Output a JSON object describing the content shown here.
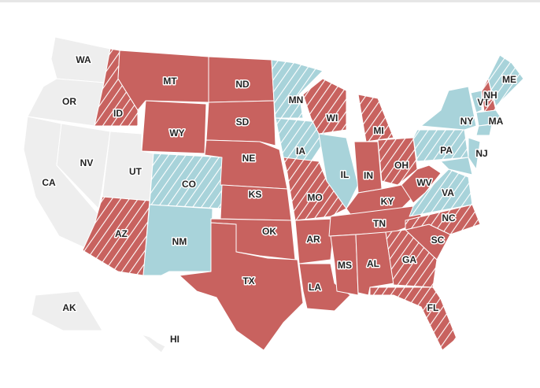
{
  "states": [
    {
      "label": "WA",
      "fill": "#eeeeee",
      "hatched": false
    },
    {
      "label": "OR",
      "fill": "#eeeeee",
      "hatched": false
    },
    {
      "label": "CA",
      "fill": "#eeeeee",
      "hatched": false
    },
    {
      "label": "NV",
      "fill": "#eeeeee",
      "hatched": false
    },
    {
      "label": "ID",
      "fill": "#c8625f",
      "hatched": true
    },
    {
      "label": "MT",
      "fill": "#c8625f",
      "hatched": false
    },
    {
      "label": "WY",
      "fill": "#c8625f",
      "hatched": false
    },
    {
      "label": "UT",
      "fill": "#eeeeee",
      "hatched": false
    },
    {
      "label": "CO",
      "fill": "#a8d3da",
      "hatched": true
    },
    {
      "label": "AZ",
      "fill": "#c8625f",
      "hatched": true
    },
    {
      "label": "NM",
      "fill": "#a8d3da",
      "hatched": false
    },
    {
      "label": "ND",
      "fill": "#c8625f",
      "hatched": false
    },
    {
      "label": "SD",
      "fill": "#c8625f",
      "hatched": false
    },
    {
      "label": "NE",
      "fill": "#c8625f",
      "hatched": false
    },
    {
      "label": "KS",
      "fill": "#c8625f",
      "hatched": false
    },
    {
      "label": "OK",
      "fill": "#c8625f",
      "hatched": false
    },
    {
      "label": "TX",
      "fill": "#c8625f",
      "hatched": false
    },
    {
      "label": "MN",
      "fill": "#a8d3da",
      "hatched": true
    },
    {
      "label": "IA",
      "fill": "#a8d3da",
      "hatched": true
    },
    {
      "label": "MO",
      "fill": "#c8625f",
      "hatched": true
    },
    {
      "label": "AR",
      "fill": "#c8625f",
      "hatched": false
    },
    {
      "label": "LA",
      "fill": "#c8625f",
      "hatched": false
    },
    {
      "label": "WI",
      "fill": "#c8625f",
      "hatched": true
    },
    {
      "label": "IL",
      "fill": "#a8d3da",
      "hatched": false
    },
    {
      "label": "MI",
      "fill": "#c8625f",
      "hatched": true
    },
    {
      "label": "IN",
      "fill": "#c8625f",
      "hatched": false
    },
    {
      "label": "OH",
      "fill": "#c8625f",
      "hatched": true
    },
    {
      "label": "KY",
      "fill": "#c8625f",
      "hatched": false
    },
    {
      "label": "TN",
      "fill": "#c8625f",
      "hatched": false
    },
    {
      "label": "MS",
      "fill": "#c8625f",
      "hatched": false
    },
    {
      "label": "AL",
      "fill": "#c8625f",
      "hatched": false
    },
    {
      "label": "GA",
      "fill": "#c8625f",
      "hatched": true
    },
    {
      "label": "FL",
      "fill": "#c8625f",
      "hatched": true
    },
    {
      "label": "SC",
      "fill": "#c8625f",
      "hatched": false
    },
    {
      "label": "NC",
      "fill": "#c8625f",
      "hatched": true
    },
    {
      "label": "VA",
      "fill": "#a8d3da",
      "hatched": true
    },
    {
      "label": "WV",
      "fill": "#c8625f",
      "hatched": false
    },
    {
      "label": "PA",
      "fill": "#a8d3da",
      "hatched": true
    },
    {
      "label": "NY",
      "fill": "#a8d3da",
      "hatched": false
    },
    {
      "label": "NJ",
      "fill": "#a8d3da",
      "hatched": false
    },
    {
      "label": "VT",
      "fill": "#a8d3da",
      "hatched": false
    },
    {
      "label": "NH",
      "fill": "#c8625f",
      "hatched": true
    },
    {
      "label": "MA",
      "fill": "#a8d3da",
      "hatched": false
    },
    {
      "label": "ME",
      "fill": "#a8d3da",
      "hatched": true
    },
    {
      "label": null,
      "fill": "#a8d3da",
      "hatched": false
    },
    {
      "label": null,
      "fill": "#a8d3da",
      "hatched": false
    },
    {
      "label": "AK",
      "fill": "#eeeeee",
      "hatched": false
    },
    {
      "label": "HI",
      "fill": "#eeeeee",
      "hatched": false
    }
  ]
}
